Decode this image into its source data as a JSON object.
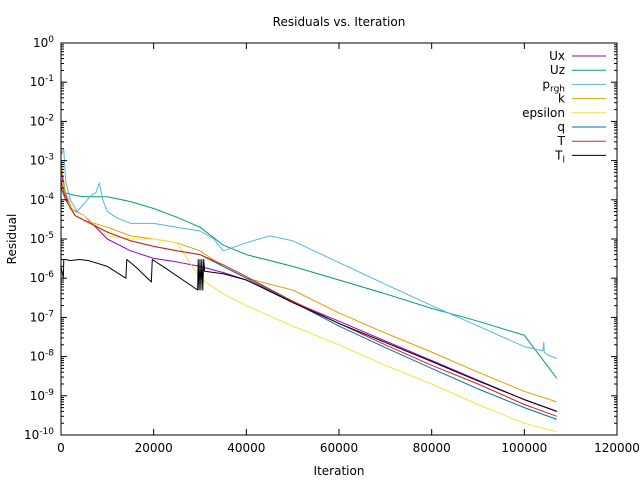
{
  "chart_data": {
    "type": "line",
    "title": "Residuals vs. Iteration",
    "xlabel": "Iteration",
    "ylabel": "Residual",
    "x_scale": "linear",
    "y_scale": "log",
    "xlim": [
      0,
      120000
    ],
    "ylim": [
      1e-10,
      1
    ],
    "grid": false,
    "legend_position": "top-right",
    "x_ticks": [
      {
        "value": 0,
        "label": "0"
      },
      {
        "value": 20000,
        "label": "20000"
      },
      {
        "value": 40000,
        "label": "40000"
      },
      {
        "value": 60000,
        "label": "60000"
      },
      {
        "value": 80000,
        "label": "80000"
      },
      {
        "value": 100000,
        "label": "100000"
      },
      {
        "value": 120000,
        "label": "120000"
      }
    ],
    "y_ticks": [
      {
        "value": 1,
        "base": "10",
        "exp": "0"
      },
      {
        "value": 0.1,
        "base": "10",
        "exp": "-1"
      },
      {
        "value": 0.01,
        "base": "10",
        "exp": "-2"
      },
      {
        "value": 0.001,
        "base": "10",
        "exp": "-3"
      },
      {
        "value": 0.0001,
        "base": "10",
        "exp": "-4"
      },
      {
        "value": 1e-05,
        "base": "10",
        "exp": "-5"
      },
      {
        "value": 1e-06,
        "base": "10",
        "exp": "-6"
      },
      {
        "value": 1e-07,
        "base": "10",
        "exp": "-7"
      },
      {
        "value": 1e-08,
        "base": "10",
        "exp": "-8"
      },
      {
        "value": 1e-09,
        "base": "10",
        "exp": "-9"
      },
      {
        "value": 1e-10,
        "base": "10",
        "exp": "-10"
      }
    ],
    "series": [
      {
        "name": "Ux",
        "label_main": "Ux",
        "label_sub": "",
        "color": "#9400d3",
        "width": 1,
        "points": [
          [
            0,
            0.001
          ],
          [
            500,
            0.0002
          ],
          [
            2000,
            6e-05
          ],
          [
            5000,
            4e-05
          ],
          [
            10000,
            1e-05
          ],
          [
            15000,
            5e-06
          ],
          [
            20000,
            3.2e-06
          ],
          [
            25000,
            2.6e-06
          ],
          [
            30000,
            2e-06
          ],
          [
            35000,
            1.4e-06
          ],
          [
            40000,
            9e-07
          ],
          [
            50000,
            2.5e-07
          ],
          [
            60000,
            8e-08
          ],
          [
            70000,
            2.5e-08
          ],
          [
            80000,
            8e-09
          ],
          [
            90000,
            2.5e-09
          ],
          [
            100000,
            8e-10
          ],
          [
            107000,
            4e-10
          ]
        ]
      },
      {
        "name": "Uz",
        "label_main": "Uz",
        "label_sub": "",
        "color": "#009e73",
        "width": 1,
        "points": [
          [
            0,
            0.0003
          ],
          [
            1000,
            0.00015
          ],
          [
            3000,
            0.00013
          ],
          [
            5000,
            0.00012
          ],
          [
            10000,
            0.00012
          ],
          [
            15000,
            9e-05
          ],
          [
            20000,
            6e-05
          ],
          [
            25000,
            3.6e-05
          ],
          [
            30000,
            2e-05
          ],
          [
            35000,
            7e-06
          ],
          [
            40000,
            4e-06
          ],
          [
            50000,
            2e-06
          ],
          [
            60000,
            9e-07
          ],
          [
            70000,
            4e-07
          ],
          [
            80000,
            1.7e-07
          ],
          [
            90000,
            8e-08
          ],
          [
            100000,
            3.5e-08
          ],
          [
            107000,
            2.8e-09
          ]
        ]
      },
      {
        "name": "p_rgh",
        "label_main": "p",
        "label_sub": "rgh",
        "color": "#56b4e9",
        "width": 1,
        "points": [
          [
            0,
            0.002
          ],
          [
            200,
            0.0015
          ],
          [
            600,
            0.0019
          ],
          [
            1000,
            0.0003
          ],
          [
            2000,
            0.0001
          ],
          [
            3500,
            5e-05
          ],
          [
            5000,
            8e-05
          ],
          [
            6500,
            0.00013
          ],
          [
            7500,
            0.00015
          ],
          [
            8300,
            0.00027
          ],
          [
            9000,
            0.0001
          ],
          [
            10000,
            5e-05
          ],
          [
            12000,
            3.5e-05
          ],
          [
            15000,
            2.5e-05
          ],
          [
            20000,
            2.5e-05
          ],
          [
            25000,
            2e-05
          ],
          [
            30000,
            1.6e-05
          ],
          [
            33000,
            1e-05
          ],
          [
            35000,
            5e-06
          ],
          [
            40000,
            8e-06
          ],
          [
            45000,
            1.2e-05
          ],
          [
            50000,
            9e-06
          ],
          [
            60000,
            2.5e-06
          ],
          [
            70000,
            7e-07
          ],
          [
            80000,
            2e-07
          ],
          [
            90000,
            6e-08
          ],
          [
            100000,
            1.8e-08
          ],
          [
            104000,
            1.4e-08
          ],
          [
            104200,
            2.3e-08
          ],
          [
            104300,
            1.3e-08
          ],
          [
            105000,
            1.1e-08
          ],
          [
            107000,
            9e-09
          ]
        ]
      },
      {
        "name": "k",
        "label_main": "k",
        "label_sub": "",
        "color": "#e69f00",
        "width": 1,
        "points": [
          [
            0,
            0.0008
          ],
          [
            1000,
            0.00015
          ],
          [
            3000,
            4e-05
          ],
          [
            5000,
            3e-05
          ],
          [
            10000,
            2e-05
          ],
          [
            15000,
            1.2e-05
          ],
          [
            20000,
            1e-05
          ],
          [
            25000,
            8e-06
          ],
          [
            30000,
            5e-06
          ],
          [
            35000,
            2e-06
          ],
          [
            40000,
            1e-06
          ],
          [
            50000,
            5e-07
          ],
          [
            60000,
            1.3e-07
          ],
          [
            70000,
            4e-08
          ],
          [
            80000,
            1.3e-08
          ],
          [
            90000,
            4e-09
          ],
          [
            100000,
            1.3e-09
          ],
          [
            107000,
            7e-10
          ]
        ]
      },
      {
        "name": "epsilon",
        "label_main": "epsilon",
        "label_sub": "",
        "color": "#f0e442",
        "width": 1,
        "points": [
          [
            0,
            0.0004
          ],
          [
            1000,
            0.0001
          ],
          [
            3000,
            5e-05
          ],
          [
            5000,
            4e-05
          ],
          [
            10000,
            1.2e-05
          ],
          [
            15000,
            1e-05
          ],
          [
            20000,
            1e-05
          ],
          [
            25000,
            8e-06
          ],
          [
            30000,
            1e-06
          ],
          [
            35000,
            4e-07
          ],
          [
            40000,
            2e-07
          ],
          [
            50000,
            6e-08
          ],
          [
            60000,
            2e-08
          ],
          [
            70000,
            6e-09
          ],
          [
            80000,
            2e-09
          ],
          [
            90000,
            6e-10
          ],
          [
            100000,
            2e-10
          ],
          [
            107000,
            1.2e-10
          ]
        ]
      },
      {
        "name": "q",
        "label_main": "q",
        "label_sub": "",
        "color": "#0072b2",
        "width": 1,
        "points": [
          [
            0,
            0.0002
          ],
          [
            1000,
            0.0001
          ],
          [
            3000,
            4e-05
          ],
          [
            5000,
            3e-05
          ],
          [
            10000,
            1.5e-05
          ],
          [
            15000,
            9e-06
          ],
          [
            20000,
            6.5e-06
          ],
          [
            25000,
            5e-06
          ],
          [
            30000,
            4e-06
          ],
          [
            35000,
            2e-06
          ],
          [
            40000,
            1e-06
          ],
          [
            50000,
            2.5e-07
          ],
          [
            60000,
            6e-08
          ],
          [
            70000,
            1.7e-08
          ],
          [
            80000,
            5e-09
          ],
          [
            90000,
            1.5e-09
          ],
          [
            100000,
            5e-10
          ],
          [
            107000,
            2.5e-10
          ]
        ]
      },
      {
        "name": "T",
        "label_main": "T",
        "label_sub": "",
        "color": "#e51e10",
        "width": 1,
        "points": [
          [
            0,
            0.0003
          ],
          [
            1000,
            0.0001
          ],
          [
            3000,
            4e-05
          ],
          [
            5000,
            3e-05
          ],
          [
            10000,
            1.5e-05
          ],
          [
            15000,
            9e-06
          ],
          [
            20000,
            6.5e-06
          ],
          [
            25000,
            5e-06
          ],
          [
            30000,
            4e-06
          ],
          [
            35000,
            2.2e-06
          ],
          [
            40000,
            1.1e-06
          ],
          [
            50000,
            2.6e-07
          ],
          [
            60000,
            7e-08
          ],
          [
            70000,
            2e-08
          ],
          [
            80000,
            6e-09
          ],
          [
            90000,
            2e-09
          ],
          [
            100000,
            6e-10
          ],
          [
            107000,
            3e-10
          ]
        ]
      },
      {
        "name": "T_l",
        "label_main": "T",
        "label_sub": "l",
        "color": "#000000",
        "width": 1,
        "points": [
          [
            0,
            2e-06
          ],
          [
            500,
            1e-06
          ],
          [
            600,
            3e-06
          ],
          [
            1000,
            3e-06
          ],
          [
            2000,
            2.8e-06
          ],
          [
            4000,
            3e-06
          ],
          [
            6000,
            2.8e-06
          ],
          [
            10000,
            2e-06
          ],
          [
            14000,
            1e-06
          ],
          [
            14200,
            3e-06
          ],
          [
            16000,
            2e-06
          ],
          [
            19500,
            8e-07
          ],
          [
            19700,
            3e-06
          ],
          [
            22000,
            2e-06
          ],
          [
            29500,
            5e-07
          ],
          [
            29600,
            3e-06
          ],
          [
            29800,
            5e-07
          ],
          [
            30000,
            3e-06
          ],
          [
            30200,
            5e-07
          ],
          [
            30400,
            3e-06
          ],
          [
            30600,
            5e-07
          ],
          [
            30800,
            3e-06
          ],
          [
            31000,
            1.5e-06
          ],
          [
            35000,
            1.3e-06
          ],
          [
            40000,
            9e-07
          ],
          [
            50000,
            2.4e-07
          ],
          [
            60000,
            7e-08
          ],
          [
            70000,
            2.3e-08
          ],
          [
            80000,
            7.5e-09
          ],
          [
            90000,
            2.4e-09
          ],
          [
            100000,
            8e-10
          ],
          [
            107000,
            4e-10
          ]
        ]
      }
    ]
  }
}
